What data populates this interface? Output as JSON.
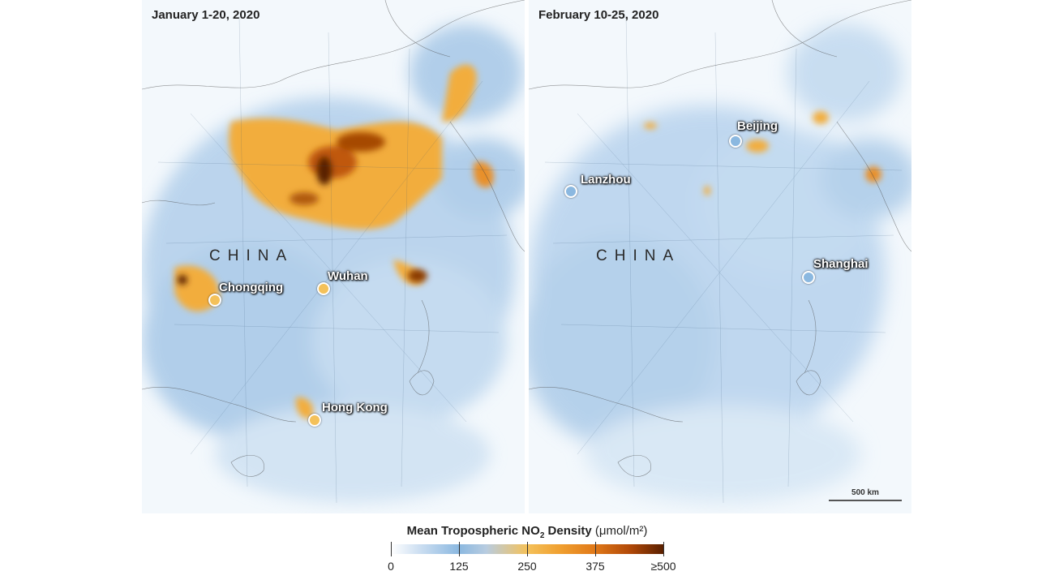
{
  "panels": {
    "left": {
      "title": "January 1-20, 2020",
      "country": "CHINA",
      "cities": [
        "Chongqing",
        "Wuhan",
        "Hong Kong"
      ]
    },
    "right": {
      "title": "February 10-25, 2020",
      "country": "CHINA",
      "cities": [
        "Beijing",
        "Lanzhou",
        "Shanghai"
      ],
      "scale": "500 km"
    }
  },
  "legend": {
    "title": "Mean Tropospheric NO",
    "title_sub": "2",
    "title_rest": " Density",
    "unit": " (μmol/m²)",
    "ticks": [
      "0",
      "125",
      "250",
      "375",
      "≥500"
    ]
  },
  "colors": {
    "low": "#8bb8e0",
    "mid": "#f4c15a",
    "high": "#e07818",
    "max": "#5a2000"
  }
}
